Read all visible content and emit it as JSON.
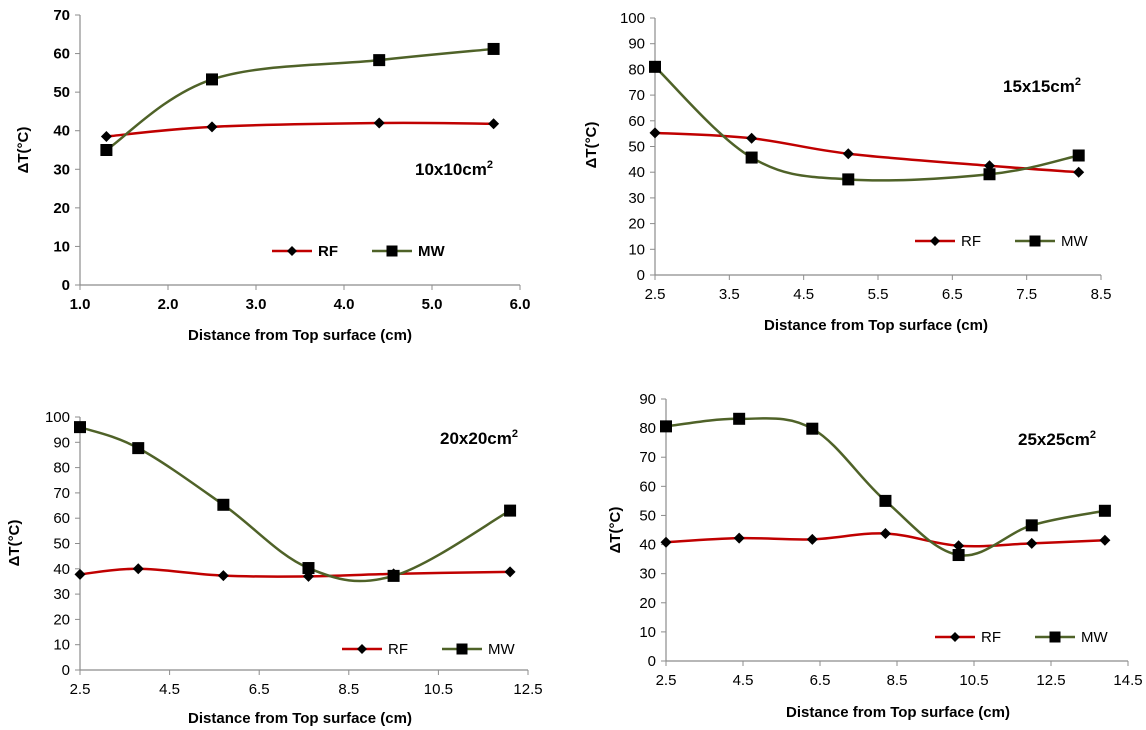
{
  "colors": {
    "rf": "#c00000",
    "mw": "#4f6228",
    "marker": "#000000",
    "axis": "#8c8c8c"
  },
  "chart_data": [
    {
      "type": "line",
      "title": "10x10cm",
      "title_sup": "2",
      "xlabel": "Distance from Top surface (cm)",
      "ylabel": "ΔT(°C)",
      "xlim": [
        1.0,
        6.0
      ],
      "ylim": [
        0,
        70
      ],
      "xticks": [
        "1.0",
        "2.0",
        "3.0",
        "4.0",
        "5.0",
        "6.0"
      ],
      "yticks": [
        "0",
        "10",
        "20",
        "30",
        "40",
        "50",
        "60",
        "70"
      ],
      "bold_ticks": true,
      "legend_bold": true,
      "series": [
        {
          "name": "RF",
          "x": [
            1.3,
            2.5,
            4.4,
            5.7
          ],
          "y": [
            38.5,
            41,
            42,
            41.8
          ]
        },
        {
          "name": "MW",
          "x": [
            1.3,
            2.5,
            4.4,
            5.7
          ],
          "y": [
            35,
            53.3,
            58.3,
            61.2
          ]
        }
      ]
    },
    {
      "type": "line",
      "title": "15x15cm",
      "title_sup": "2",
      "xlabel": "Distance from Top surface (cm)",
      "ylabel": "ΔT(°C)",
      "xlim": [
        2.5,
        8.5
      ],
      "ylim": [
        0,
        100
      ],
      "xticks": [
        "2.5",
        "3.5",
        "4.5",
        "5.5",
        "6.5",
        "7.5",
        "8.5"
      ],
      "yticks": [
        "0",
        "10",
        "20",
        "30",
        "40",
        "50",
        "60",
        "70",
        "80",
        "90",
        "100"
      ],
      "bold_ticks": false,
      "legend_bold": false,
      "series": [
        {
          "name": "RF",
          "x": [
            2.5,
            3.8,
            5.1,
            7.0,
            8.2
          ],
          "y": [
            55.3,
            53.2,
            47.2,
            42.5,
            40
          ]
        },
        {
          "name": "MW",
          "x": [
            2.5,
            3.8,
            5.1,
            7.0,
            8.2
          ],
          "y": [
            81,
            45.7,
            37.2,
            39.2,
            46.5
          ]
        }
      ]
    },
    {
      "type": "line",
      "title": "20x20cm",
      "title_sup": "2",
      "xlabel": "Distance from Top surface (cm)",
      "ylabel": "ΔT(°C)",
      "xlim": [
        2.5,
        12.5
      ],
      "ylim": [
        0,
        100
      ],
      "xticks": [
        "2.5",
        "4.5",
        "6.5",
        "8.5",
        "10.5",
        "12.5"
      ],
      "yticks": [
        "0",
        "10",
        "20",
        "30",
        "40",
        "50",
        "60",
        "70",
        "80",
        "90",
        "100"
      ],
      "bold_ticks": false,
      "legend_bold": false,
      "series": [
        {
          "name": "RF",
          "x": [
            2.5,
            3.8,
            5.7,
            7.6,
            9.5,
            12.1
          ],
          "y": [
            37.8,
            40,
            37.3,
            37,
            38,
            38.8
          ]
        },
        {
          "name": "MW",
          "x": [
            2.5,
            3.8,
            5.7,
            7.6,
            9.5,
            12.1
          ],
          "y": [
            96,
            87.7,
            65.3,
            40.3,
            37.2,
            63
          ]
        }
      ]
    },
    {
      "type": "line",
      "title": "25x25cm",
      "title_sup": "2",
      "xlabel": "Distance from Top surface (cm)",
      "ylabel": "ΔT(°C)",
      "xlim": [
        2.5,
        14.5
      ],
      "ylim": [
        0,
        90
      ],
      "xticks": [
        "2.5",
        "4.5",
        "6.5",
        "8.5",
        "10.5",
        "12.5",
        "14.5"
      ],
      "yticks": [
        "0",
        "10",
        "20",
        "30",
        "40",
        "50",
        "60",
        "70",
        "80",
        "90"
      ],
      "bold_ticks": false,
      "legend_bold": false,
      "series": [
        {
          "name": "RF",
          "x": [
            2.5,
            4.4,
            6.3,
            8.2,
            10.1,
            12.0,
            13.9
          ],
          "y": [
            40.8,
            42.2,
            41.8,
            43.8,
            39.6,
            40.4,
            41.5
          ]
        },
        {
          "name": "MW",
          "x": [
            2.5,
            4.4,
            6.3,
            8.2,
            10.1,
            12.0,
            13.9
          ],
          "y": [
            80.6,
            83.2,
            79.8,
            55,
            36.4,
            46.6,
            51.6
          ]
        }
      ]
    }
  ]
}
